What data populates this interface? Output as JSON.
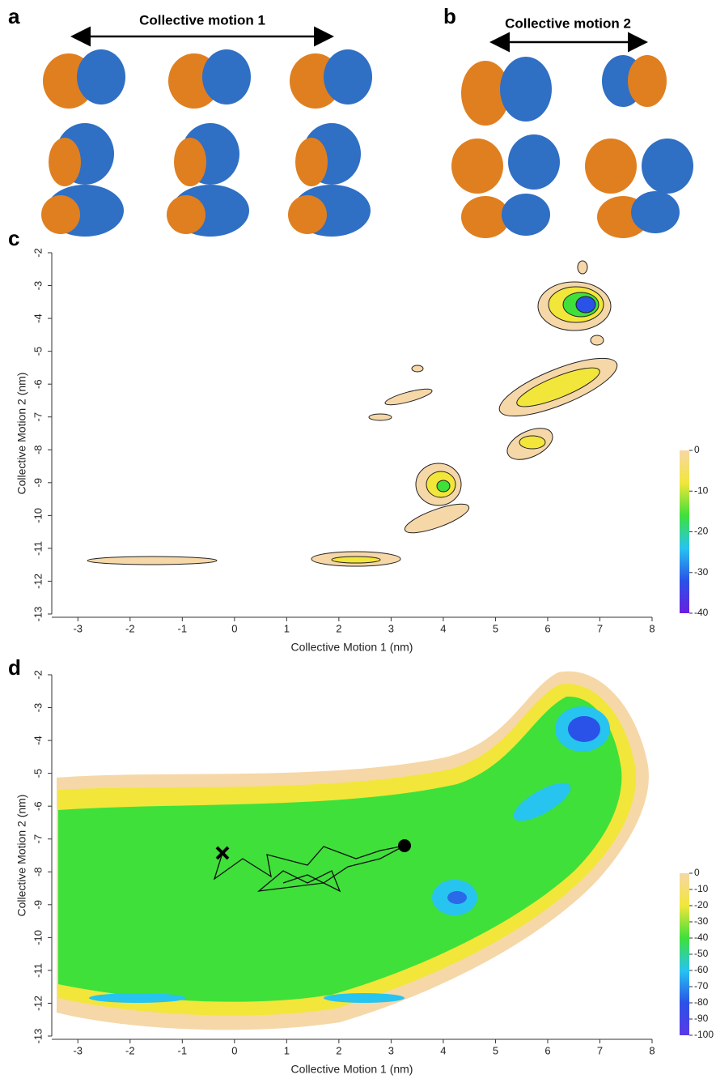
{
  "panels": {
    "a": {
      "label": "a",
      "title": "Collective motion 1"
    },
    "b": {
      "label": "b",
      "title": "Collective motion 2"
    }
  },
  "chart_data": [
    {
      "type": "contour",
      "panel_label": "c",
      "xlabel": "Collective Motion 1 (nm)",
      "ylabel": "Collective Motion 2 (nm)",
      "xlim": [
        -3.5,
        8
      ],
      "xticks": [
        -3,
        -2,
        -1,
        0,
        1,
        2,
        3,
        4,
        5,
        6,
        7,
        8
      ],
      "ylim": [
        -13,
        -2
      ],
      "yticks": [
        -2,
        -3,
        -4,
        -5,
        -6,
        -7,
        -8,
        -9,
        -10,
        -11,
        -12,
        -13
      ],
      "colorbar": {
        "lim": [
          -40,
          0
        ],
        "ticks": [
          0,
          -10,
          -20,
          -30,
          -40
        ],
        "colors": [
          "#f6d7a7",
          "#f2e63a",
          "#3fe03a",
          "#27c4f0",
          "#2a52e8",
          "#6a1ee0"
        ]
      }
    },
    {
      "type": "contour",
      "panel_label": "d",
      "xlabel": "Collective Motion 1 (nm)",
      "ylabel": "Collective Motion 2 (nm)",
      "xlim": [
        -3.5,
        8
      ],
      "xticks": [
        -3,
        -2,
        -1,
        0,
        1,
        2,
        3,
        4,
        5,
        6,
        7,
        8
      ],
      "ylim": [
        -13,
        -2
      ],
      "yticks": [
        -2,
        -3,
        -4,
        -5,
        -6,
        -7,
        -8,
        -9,
        -10,
        -11,
        -12,
        -13
      ],
      "colorbar": {
        "lim": [
          -100,
          0
        ],
        "ticks": [
          0,
          -10,
          -20,
          -30,
          -40,
          -50,
          -60,
          -70,
          -80,
          -90,
          -100
        ],
        "colors": [
          "#f6d7a7",
          "#f2e63a",
          "#3fe03a",
          "#27c4f0",
          "#2a52e8",
          "#5a3ae6"
        ]
      }
    }
  ]
}
